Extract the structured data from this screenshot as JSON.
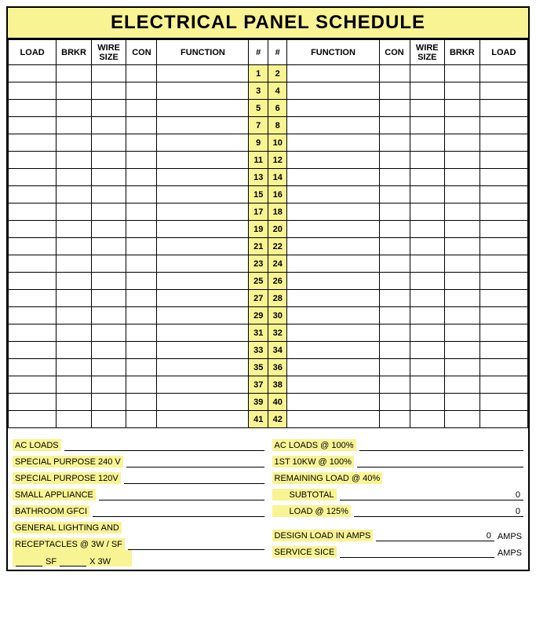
{
  "colors": {
    "highlight": "#f8f493",
    "border": "#000000",
    "background": "#ffffff"
  },
  "title": "ELECTRICAL PANEL SCHEDULE",
  "headers": {
    "load": "LOAD",
    "brkr": "BRKR",
    "wire": "WIRE SIZE",
    "con": "CON",
    "function": "FUNCTION",
    "num": "#"
  },
  "circuit_rows": [
    {
      "l": "1",
      "r": "2"
    },
    {
      "l": "3",
      "r": "4"
    },
    {
      "l": "5",
      "r": "6"
    },
    {
      "l": "7",
      "r": "8"
    },
    {
      "l": "9",
      "r": "10"
    },
    {
      "l": "11",
      "r": "12"
    },
    {
      "l": "13",
      "r": "14"
    },
    {
      "l": "15",
      "r": "16"
    },
    {
      "l": "17",
      "r": "18"
    },
    {
      "l": "19",
      "r": "20"
    },
    {
      "l": "21",
      "r": "22"
    },
    {
      "l": "23",
      "r": "24"
    },
    {
      "l": "25",
      "r": "26"
    },
    {
      "l": "27",
      "r": "28"
    },
    {
      "l": "29",
      "r": "30"
    },
    {
      "l": "31",
      "r": "32"
    },
    {
      "l": "33",
      "r": "34"
    },
    {
      "l": "35",
      "r": "36"
    },
    {
      "l": "37",
      "r": "38"
    },
    {
      "l": "39",
      "r": "40"
    },
    {
      "l": "41",
      "r": "42"
    }
  ],
  "footer_left": {
    "r1": "AC LOADS",
    "r2": "SPECIAL PURPOSE 240 V",
    "r3": "SPECIAL PURPOSE 120V",
    "r4": "SMALL APPLIANCE",
    "r5": "BATHROOM GFCI",
    "r6": "GENERAL LIGHTING AND",
    "r7": "RECEPTACLES @ 3W / SF",
    "sf_label": "SF",
    "sf_mult": "X 3W"
  },
  "footer_right": {
    "r1": "AC LOADS @ 100%",
    "r2": "1ST 10KW @ 100%",
    "r3": "REMAINING LOAD @ 40%",
    "r4": "SUBTOTAL",
    "r4_val": "0",
    "r5": "LOAD @ 125%",
    "r5_val": "0",
    "r6": "DESIGN LOAD IN AMPS",
    "r6_val": "0",
    "r6_unit": "AMPS",
    "r7": "SERVICE SICE",
    "r7_unit": "AMPS"
  }
}
